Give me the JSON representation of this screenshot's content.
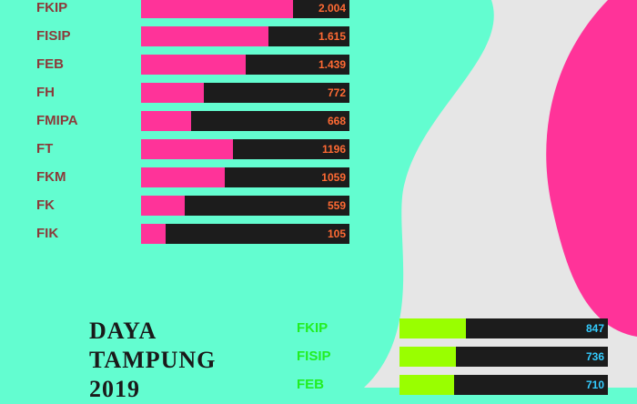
{
  "colors": {
    "background": "#63fdd0",
    "shape_grey": "#e6e6e6",
    "shape_pink": "#ff3399",
    "bar_track": "#1c1c1c",
    "upper_fill": "#ff3399",
    "upper_label": "#8b3a3a",
    "upper_value": "#ff6a33",
    "lower_fill": "#99ff00",
    "lower_label": "#22ee22",
    "lower_value": "#33ccff"
  },
  "title_lines": [
    "DAYA",
    "TAMPUNG",
    "2019"
  ],
  "chart_data": [
    {
      "type": "bar",
      "orientation": "horizontal",
      "categories": [
        "FKIP",
        "FISIP",
        "FEB",
        "FH",
        "FMIPA",
        "FT",
        "FKM",
        "FK",
        "FIK"
      ],
      "values": [
        2004,
        1615,
        1439,
        772,
        668,
        1196,
        1059,
        559,
        105
      ],
      "value_labels": [
        "2.004",
        "1.615",
        "1.439",
        "772",
        "668",
        "1196",
        "1059",
        "559",
        "105"
      ],
      "fill_fractions": [
        0.73,
        0.61,
        0.5,
        0.3,
        0.24,
        0.44,
        0.4,
        0.21,
        0.12
      ]
    },
    {
      "type": "bar",
      "orientation": "horizontal",
      "categories": [
        "FKIP",
        "FISIP",
        "FEB"
      ],
      "values": [
        847,
        736,
        710
      ],
      "value_labels": [
        "847",
        "736",
        "710"
      ],
      "fill_fractions": [
        0.32,
        0.27,
        0.26
      ]
    }
  ]
}
